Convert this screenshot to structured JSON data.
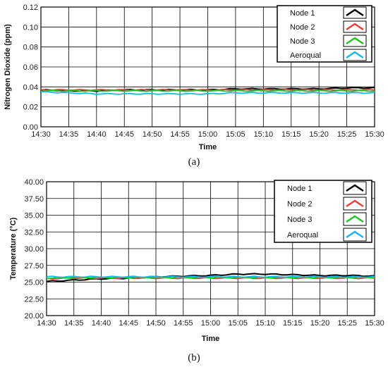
{
  "chart_data": [
    {
      "type": "line",
      "caption": "(a)",
      "xlabel": "Time",
      "ylabel": "Nitrogen Dioxide (ppm)",
      "x": [
        "14:30",
        "14:35",
        "14:40",
        "14:45",
        "14:50",
        "14:55",
        "15:00",
        "15:05",
        "15:10",
        "15:15",
        "15:20",
        "15:25",
        "15:30"
      ],
      "ylim": [
        0,
        0.12
      ],
      "yticks": [
        "0.00",
        "0.02",
        "0.04",
        "0.06",
        "0.08",
        "0.10",
        "0.12"
      ],
      "grid": true,
      "legend_position": "top-right",
      "series": [
        {
          "name": "Node 1",
          "color": "#000000",
          "values": [
            0.037,
            0.036,
            0.036,
            0.037,
            0.037,
            0.037,
            0.037,
            0.038,
            0.038,
            0.038,
            0.038,
            0.039,
            0.039
          ]
        },
        {
          "name": "Node 2",
          "color": "#e8413c",
          "values": [
            0.037,
            0.037,
            0.037,
            0.037,
            0.037,
            0.037,
            0.037,
            0.037,
            0.037,
            0.037,
            0.037,
            0.037,
            0.037
          ]
        },
        {
          "name": "Node 3",
          "color": "#22c322",
          "values": [
            0.036,
            0.036,
            0.036,
            0.036,
            0.036,
            0.036,
            0.036,
            0.036,
            0.036,
            0.036,
            0.036,
            0.036,
            0.036
          ]
        },
        {
          "name": "Aeroqual",
          "color": "#1ab7ea",
          "values": [
            0.035,
            0.034,
            0.033,
            0.033,
            0.033,
            0.033,
            0.033,
            0.034,
            0.034,
            0.034,
            0.034,
            0.034,
            0.034
          ]
        }
      ]
    },
    {
      "type": "line",
      "caption": "(b)",
      "xlabel": "Time",
      "ylabel": "Temperature (°C)",
      "x": [
        "14:30",
        "14:35",
        "14:40",
        "14:45",
        "14:50",
        "14:55",
        "15:00",
        "15:05",
        "15:10",
        "15:15",
        "15:20",
        "15:25",
        "15:30"
      ],
      "ylim": [
        20,
        40
      ],
      "yticks": [
        "20.00",
        "22.50",
        "25.00",
        "27.50",
        "30.00",
        "32.50",
        "35.00",
        "37.50",
        "40.00"
      ],
      "grid": true,
      "legend_position": "top-right",
      "series": [
        {
          "name": "Node 1",
          "color": "#000000",
          "values": [
            25.1,
            25.3,
            25.5,
            25.6,
            25.8,
            25.9,
            26.0,
            26.2,
            26.2,
            26.1,
            26.0,
            26.0,
            25.9
          ]
        },
        {
          "name": "Node 2",
          "color": "#e8413c",
          "values": [
            25.5,
            25.6,
            25.6,
            25.6,
            25.6,
            25.6,
            25.6,
            25.6,
            25.6,
            25.6,
            25.6,
            25.6,
            25.6
          ]
        },
        {
          "name": "Node 3",
          "color": "#22c322",
          "values": [
            25.6,
            25.7,
            25.7,
            25.7,
            25.7,
            25.7,
            25.7,
            25.7,
            25.7,
            25.7,
            25.7,
            25.7,
            25.7
          ]
        },
        {
          "name": "Aeroqual",
          "color": "#1ab7ea",
          "values": [
            25.8,
            25.8,
            25.8,
            25.8,
            25.8,
            25.8,
            25.8,
            25.8,
            25.8,
            25.8,
            25.8,
            25.8,
            25.8
          ]
        }
      ]
    }
  ]
}
